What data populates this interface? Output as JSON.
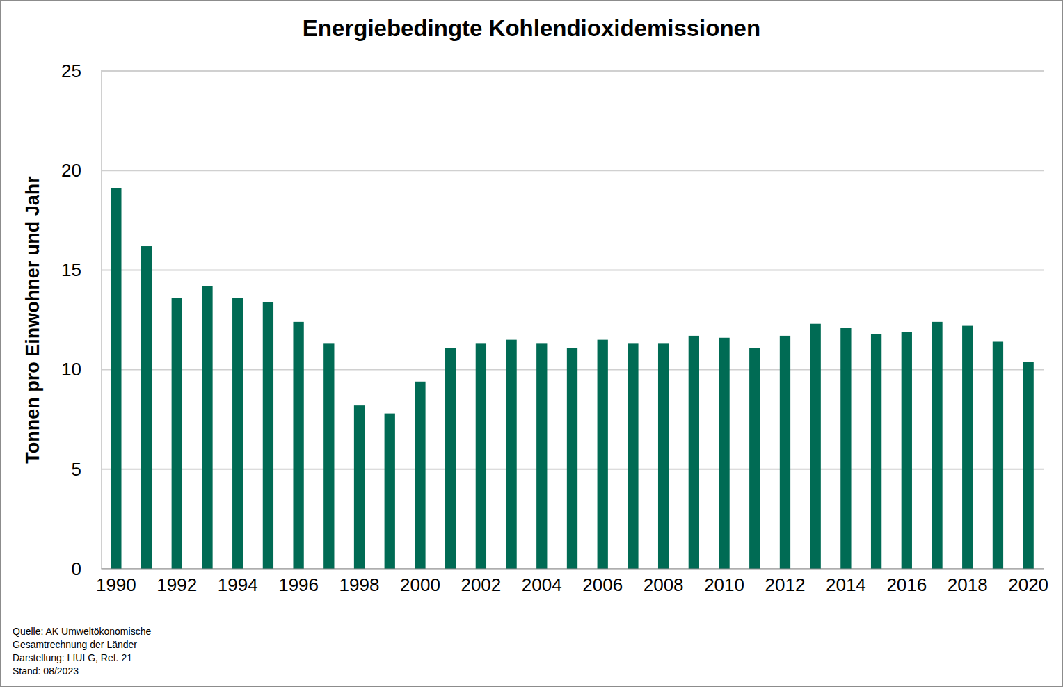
{
  "chart_data": {
    "type": "bar",
    "title": "Energiebedingte Kohlendioxidemissionen",
    "y_label": "Tonnen pro Einwohner und Jahr",
    "categories": [
      "1990",
      null,
      "1992",
      null,
      "1994",
      null,
      "1996",
      null,
      "1998",
      null,
      "2000",
      null,
      "2002",
      null,
      "2004",
      null,
      "2006",
      null,
      "2008",
      null,
      "2010",
      null,
      "2012",
      null,
      "2014",
      null,
      "2016",
      null,
      "2018",
      null,
      "2020"
    ],
    "values": [
      19.1,
      16.2,
      13.6,
      14.2,
      13.6,
      13.4,
      12.4,
      11.3,
      8.2,
      7.8,
      9.4,
      11.1,
      11.3,
      11.5,
      11.3,
      11.1,
      11.5,
      11.3,
      11.3,
      11.7,
      11.6,
      11.1,
      11.7,
      12.3,
      12.1,
      11.8,
      11.9,
      12.4,
      12.2,
      11.4,
      10.4
    ],
    "color": "#006b54",
    "ylim": [
      0,
      25
    ],
    "yticks": [
      0,
      5,
      10,
      15,
      20,
      25
    ],
    "grid": true,
    "annotations": [
      "Quelle: AK Umweltökonomische",
      "Gesamtrechnung der Länder",
      "Darstellung: LfULG, Ref. 21",
      "Stand: 08/2023"
    ]
  }
}
